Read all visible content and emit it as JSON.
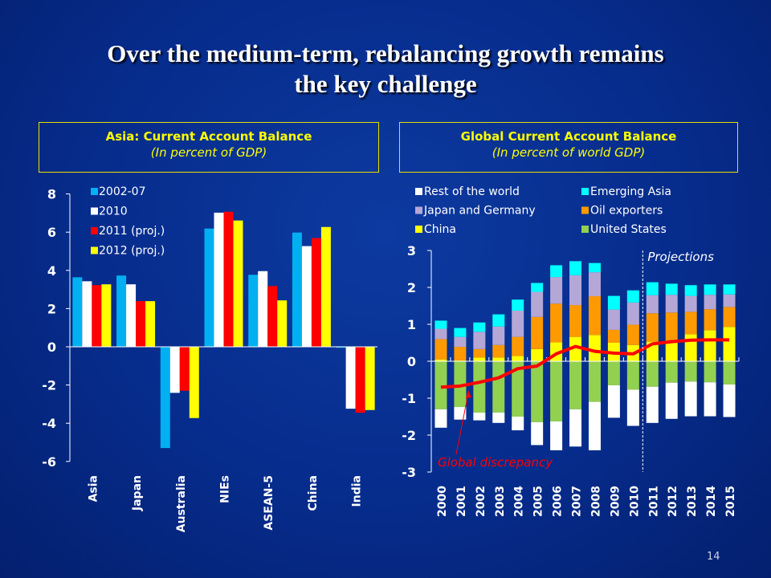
{
  "slide": {
    "title_line1": "Over the medium-term, rebalancing growth remains",
    "title_line2": "the key challenge",
    "page_number": "14"
  },
  "colors": {
    "background": "#062c8c",
    "box_border": "#e8e000",
    "box_text": "#ffff00"
  },
  "chart_data": [
    {
      "type": "bar",
      "title": "Asia: Current Account Balance",
      "subtitle": "(In percent of GDP)",
      "categories": [
        "Asia",
        "Japan",
        "Australia",
        "NIEs",
        "ASEAN-5",
        "China",
        "India"
      ],
      "ylim": [
        -6,
        8
      ],
      "yticks": [
        8,
        6,
        4,
        2,
        0,
        -2,
        -4,
        -6
      ],
      "legend_position": "top-left",
      "grid": false,
      "series": [
        {
          "name": "2002-07",
          "color": "#00b0f0",
          "values": [
            3.64,
            3.73,
            -5.3,
            6.19,
            3.77,
            5.98,
            -0.05
          ]
        },
        {
          "name": "2010",
          "color": "#ffffff",
          "values": [
            3.43,
            3.27,
            -2.41,
            7.02,
            3.96,
            5.27,
            -3.24
          ]
        },
        {
          "name": "2011 (proj.)",
          "color": "#ff0000",
          "values": [
            3.23,
            2.39,
            -2.3,
            7.07,
            3.18,
            5.69,
            -3.45
          ]
        },
        {
          "name": "2012 (proj.)",
          "color": "#ffff00",
          "values": [
            3.27,
            2.39,
            -3.73,
            6.61,
            2.43,
            6.27,
            -3.31
          ]
        }
      ]
    },
    {
      "type": "bar",
      "stacked": true,
      "title": "Global Current Account Balance",
      "subtitle": "(In percent of world GDP)",
      "categories": [
        "2000",
        "2001",
        "2002",
        "2003",
        "2004",
        "2005",
        "2006",
        "2007",
        "2008",
        "2009",
        "2010",
        "2011",
        "2012",
        "2013",
        "2014",
        "2015"
      ],
      "ylim": [
        -3,
        3
      ],
      "yticks": [
        3,
        2,
        1,
        0,
        -1,
        -2,
        -3
      ],
      "legend_position": "top",
      "grid": false,
      "annotations": {
        "projections": "Projections",
        "projections_start": "2011",
        "line_label": "Global discrepancy"
      },
      "legend_order": [
        "Rest of the world",
        "Emerging Asia",
        "Japan and Germany",
        "Oil exporters",
        "China",
        "United States"
      ],
      "series": [
        {
          "name": "China",
          "color": "#ffff00",
          "values": [
            0.05,
            0.02,
            0.1,
            0.1,
            0.14,
            0.33,
            0.51,
            0.66,
            0.71,
            0.5,
            0.44,
            0.53,
            0.57,
            0.73,
            0.84,
            0.93
          ]
        },
        {
          "name": "Oil exporters",
          "color": "#ff9900",
          "values": [
            0.55,
            0.37,
            0.23,
            0.34,
            0.52,
            0.87,
            1.05,
            0.86,
            1.05,
            0.35,
            0.55,
            0.77,
            0.75,
            0.61,
            0.57,
            0.54
          ]
        },
        {
          "name": "Japan and Germany",
          "color": "#b4a7d6",
          "values": [
            0.28,
            0.27,
            0.47,
            0.5,
            0.71,
            0.68,
            0.72,
            0.81,
            0.65,
            0.55,
            0.6,
            0.49,
            0.48,
            0.43,
            0.39,
            0.34
          ]
        },
        {
          "name": "Emerging Asia",
          "color": "#00ffff",
          "values": [
            0.22,
            0.24,
            0.25,
            0.33,
            0.3,
            0.24,
            0.32,
            0.38,
            0.25,
            0.37,
            0.33,
            0.35,
            0.3,
            0.29,
            0.28,
            0.27
          ]
        },
        {
          "name": "United States",
          "color": "#92d050",
          "values": [
            -1.3,
            -1.24,
            -1.39,
            -1.39,
            -1.5,
            -1.65,
            -1.63,
            -1.3,
            -1.1,
            -0.65,
            -0.77,
            -0.69,
            -0.58,
            -0.55,
            -0.57,
            -0.63
          ]
        },
        {
          "name": "Rest of the world",
          "color": "#ffffff",
          "values": [
            -0.5,
            -0.34,
            -0.21,
            -0.28,
            -0.37,
            -0.62,
            -0.78,
            -1.01,
            -1.31,
            -0.88,
            -0.98,
            -0.98,
            -0.98,
            -0.94,
            -0.92,
            -0.88
          ]
        },
        {
          "name": "Global discrepancy",
          "type": "line",
          "color": "#ff0000",
          "values": [
            -0.7,
            -0.67,
            -0.57,
            -0.45,
            -0.2,
            -0.13,
            0.2,
            0.4,
            0.27,
            0.22,
            0.2,
            0.47,
            0.53,
            0.57,
            0.58,
            0.58
          ]
        }
      ]
    }
  ]
}
